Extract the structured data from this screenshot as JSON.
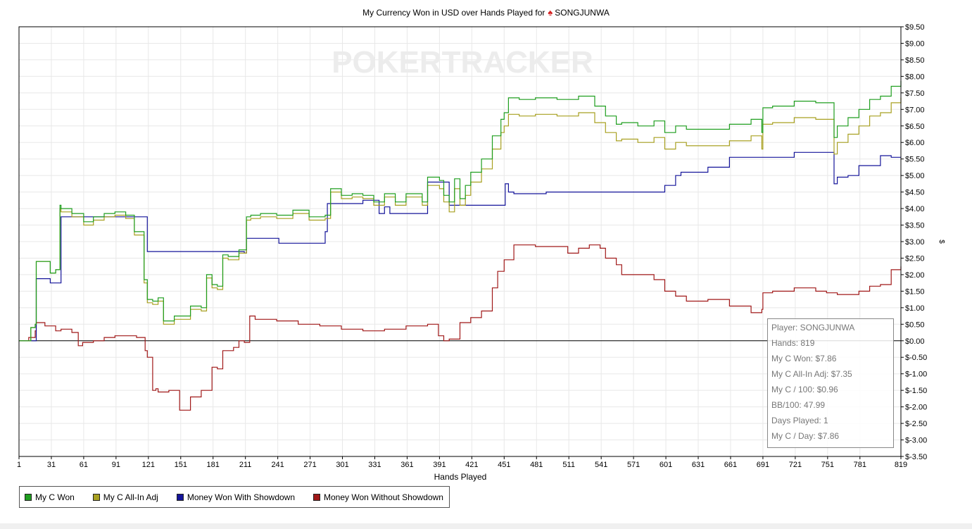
{
  "title": {
    "text": "My Currency Won in USD over Hands Played for",
    "player": "SONGJUNWA"
  },
  "watermark": "POKERTRACKER",
  "info_box": [
    "Player: SONGJUNWA",
    "Hands: 819",
    "My C Won: $7.86",
    "My C All-In Adj: $7.35",
    "My C / 100: $0.96",
    "BB/100: 47.99",
    "Days Played: 1",
    "My C / Day: $7.86"
  ],
  "colors": {
    "my_c_won": "#1f9e1f",
    "all_in_adj": "#a8a020",
    "showdown": "#14149a",
    "non_showdown": "#a01818",
    "grid": "#e8e8e8",
    "axis": "#000000"
  },
  "chart_data": {
    "type": "line",
    "title": "My Currency Won in USD over Hands Played for SONGJUNWA",
    "xlabel": "Hands Played",
    "ylabel": "$",
    "xlim": [
      1,
      819
    ],
    "ylim": [
      -3.5,
      9.5
    ],
    "x_ticks": [
      1,
      31,
      61,
      91,
      121,
      151,
      181,
      211,
      241,
      271,
      301,
      331,
      361,
      391,
      421,
      451,
      481,
      511,
      541,
      571,
      601,
      631,
      661,
      691,
      721,
      751,
      781,
      819
    ],
    "y_ticks": [
      9.5,
      9.0,
      8.5,
      8.0,
      7.5,
      7.0,
      6.5,
      6.0,
      5.5,
      5.0,
      4.5,
      4.0,
      3.5,
      3.0,
      2.5,
      2.0,
      1.5,
      1.0,
      0.5,
      0.0,
      -0.5,
      -1.0,
      -1.5,
      -2.0,
      -2.5,
      -3.0,
      -3.5
    ],
    "y_tick_labels": [
      "$9.50",
      "$9.00",
      "$8.50",
      "$8.00",
      "$7.50",
      "$7.00",
      "$6.50",
      "$6.00",
      "$5.50",
      "$5.00",
      "$4.50",
      "$4.00",
      "$3.50",
      "$3.00",
      "$2.50",
      "$2.00",
      "$1.50",
      "$1.00",
      "$0.50",
      "$0.00",
      "$-0.50",
      "$-1.00",
      "$-1.50",
      "$-2.00",
      "$-2.50",
      "$-3.00",
      "$-3.50"
    ],
    "grid": true,
    "legend_position": "bottom-left",
    "series": [
      {
        "name": "My C Won",
        "x": [
          1,
          5,
          12,
          16,
          17,
          30,
          35,
          39,
          40,
          50,
          61,
          70,
          80,
          90,
          100,
          108,
          112,
          117,
          120,
          125,
          130,
          135,
          145,
          160,
          170,
          175,
          180,
          185,
          190,
          195,
          205,
          212,
          216,
          225,
          240,
          255,
          270,
          285,
          290,
          300,
          310,
          320,
          330,
          340,
          350,
          360,
          375,
          380,
          391,
          395,
          400,
          405,
          410,
          415,
          420,
          430,
          440,
          448,
          451,
          455,
          465,
          480,
          500,
          520,
          535,
          545,
          555,
          560,
          575,
          590,
          600,
          610,
          620,
          640,
          660,
          680,
          690,
          691,
          700,
          720,
          740,
          755,
          757,
          760,
          770,
          780,
          790,
          800,
          810,
          819
        ],
        "y": [
          0.0,
          0.0,
          0.4,
          0.5,
          2.4,
          2.05,
          2.15,
          4.1,
          4.0,
          3.85,
          3.6,
          3.75,
          3.85,
          3.9,
          3.8,
          3.3,
          3.3,
          1.85,
          1.25,
          1.2,
          1.3,
          0.6,
          0.75,
          1.05,
          1.0,
          2.0,
          1.7,
          1.65,
          2.6,
          2.55,
          2.75,
          3.75,
          3.8,
          3.85,
          3.8,
          3.95,
          3.75,
          3.8,
          4.6,
          4.4,
          4.45,
          4.4,
          4.2,
          4.45,
          4.2,
          4.45,
          4.2,
          4.95,
          4.85,
          4.4,
          4.2,
          4.9,
          4.3,
          4.7,
          5.1,
          5.5,
          6.2,
          6.7,
          6.9,
          7.35,
          7.3,
          7.35,
          7.3,
          7.4,
          7.1,
          6.8,
          6.55,
          6.6,
          6.5,
          6.65,
          6.3,
          6.5,
          6.4,
          6.4,
          6.55,
          6.7,
          6.3,
          7.05,
          7.1,
          7.25,
          7.2,
          7.2,
          6.15,
          6.5,
          6.75,
          7.0,
          7.3,
          7.4,
          7.7,
          7.86
        ]
      },
      {
        "name": "My C All-In Adj",
        "x": [
          1,
          5,
          12,
          16,
          17,
          30,
          35,
          39,
          40,
          50,
          61,
          70,
          80,
          90,
          100,
          108,
          112,
          117,
          120,
          125,
          130,
          135,
          145,
          160,
          170,
          175,
          180,
          185,
          190,
          195,
          205,
          212,
          216,
          225,
          240,
          255,
          270,
          285,
          290,
          300,
          310,
          320,
          330,
          340,
          350,
          360,
          375,
          380,
          391,
          395,
          400,
          405,
          410,
          415,
          420,
          430,
          440,
          448,
          451,
          455,
          465,
          480,
          500,
          520,
          535,
          545,
          555,
          560,
          575,
          590,
          600,
          610,
          620,
          640,
          660,
          680,
          690,
          691,
          700,
          720,
          740,
          755,
          757,
          760,
          770,
          780,
          790,
          800,
          810,
          819
        ],
        "y": [
          0.0,
          0.0,
          0.4,
          0.5,
          2.4,
          2.05,
          2.15,
          4.0,
          3.9,
          3.75,
          3.5,
          3.65,
          3.75,
          3.8,
          3.7,
          3.2,
          3.2,
          1.75,
          1.15,
          1.1,
          1.2,
          0.5,
          0.65,
          0.95,
          0.9,
          1.9,
          1.6,
          1.55,
          2.5,
          2.45,
          2.65,
          3.65,
          3.7,
          3.75,
          3.7,
          3.85,
          3.65,
          3.7,
          4.5,
          4.3,
          4.35,
          4.3,
          4.1,
          4.35,
          4.1,
          4.35,
          4.1,
          4.7,
          4.6,
          4.2,
          3.9,
          4.6,
          4.1,
          4.4,
          4.8,
          5.2,
          5.8,
          6.3,
          6.5,
          6.85,
          6.8,
          6.85,
          6.8,
          6.9,
          6.6,
          6.3,
          6.05,
          6.1,
          6.0,
          6.15,
          5.8,
          6.0,
          5.9,
          5.9,
          6.05,
          6.2,
          5.8,
          6.55,
          6.6,
          6.75,
          6.7,
          6.7,
          5.65,
          6.0,
          6.25,
          6.5,
          6.8,
          6.9,
          7.2,
          7.35
        ]
      },
      {
        "name": "Money Won With Showdown",
        "x": [
          1,
          16,
          17,
          30,
          35,
          40,
          80,
          117,
          120,
          180,
          210,
          212,
          240,
          242,
          285,
          287,
          320,
          330,
          335,
          340,
          345,
          375,
          380,
          390,
          391,
          400,
          405,
          445,
          451,
          452,
          455,
          460,
          480,
          490,
          550,
          590,
          600,
          610,
          615,
          640,
          650,
          660,
          690,
          720,
          750,
          756,
          757,
          760,
          770,
          780,
          800,
          810,
          819
        ],
        "y": [
          0.0,
          0.0,
          1.88,
          1.75,
          1.75,
          3.75,
          3.75,
          3.75,
          2.7,
          2.7,
          2.65,
          3.1,
          3.1,
          2.95,
          3.3,
          4.15,
          4.25,
          4.25,
          3.85,
          4.05,
          3.85,
          3.85,
          4.8,
          4.8,
          4.8,
          4.1,
          4.1,
          4.1,
          4.1,
          4.75,
          4.5,
          4.45,
          4.45,
          4.5,
          4.5,
          4.5,
          4.7,
          5.0,
          5.1,
          5.25,
          5.25,
          5.55,
          5.55,
          5.7,
          5.7,
          5.7,
          4.75,
          4.95,
          5.0,
          5.3,
          5.6,
          5.55,
          5.55
        ]
      },
      {
        "name": "Money Won Without Showdown",
        "x": [
          1,
          10,
          16,
          17,
          25,
          35,
          40,
          50,
          56,
          60,
          70,
          80,
          90,
          100,
          110,
          118,
          120,
          125,
          128,
          130,
          140,
          150,
          160,
          170,
          180,
          185,
          190,
          200,
          205,
          210,
          215,
          220,
          240,
          260,
          280,
          300,
          320,
          340,
          360,
          380,
          390,
          395,
          400,
          410,
          420,
          430,
          440,
          445,
          451,
          460,
          480,
          500,
          510,
          520,
          530,
          540,
          545,
          555,
          560,
          580,
          590,
          600,
          610,
          620,
          640,
          660,
          680,
          690,
          691,
          700,
          720,
          740,
          750,
          760,
          780,
          790,
          800,
          810,
          819
        ],
        "y": [
          0.0,
          0.1,
          0.3,
          0.55,
          0.45,
          0.3,
          0.35,
          0.25,
          -0.15,
          -0.05,
          0.0,
          0.1,
          0.15,
          0.15,
          0.1,
          -0.3,
          -0.5,
          -1.5,
          -1.45,
          -1.55,
          -1.5,
          -2.1,
          -1.7,
          -1.5,
          -0.8,
          -0.85,
          -0.3,
          -0.2,
          0.0,
          -0.05,
          0.75,
          0.65,
          0.6,
          0.5,
          0.45,
          0.35,
          0.3,
          0.35,
          0.45,
          0.5,
          0.15,
          0.0,
          0.05,
          0.55,
          0.7,
          0.9,
          1.6,
          2.1,
          2.45,
          2.9,
          2.85,
          2.85,
          2.65,
          2.8,
          2.9,
          2.8,
          2.5,
          2.3,
          2.0,
          2.0,
          1.85,
          1.5,
          1.35,
          1.2,
          1.25,
          1.05,
          0.85,
          0.95,
          1.45,
          1.5,
          1.6,
          1.5,
          1.45,
          1.4,
          1.5,
          1.65,
          1.7,
          2.15,
          2.25
        ]
      }
    ]
  },
  "legend": [
    {
      "label": "My C Won",
      "color": "#1f9e1f"
    },
    {
      "label": "My C All-In Adj",
      "color": "#a8a020"
    },
    {
      "label": "Money Won With Showdown",
      "color": "#14149a"
    },
    {
      "label": "Money Won Without Showdown",
      "color": "#a01818"
    }
  ]
}
